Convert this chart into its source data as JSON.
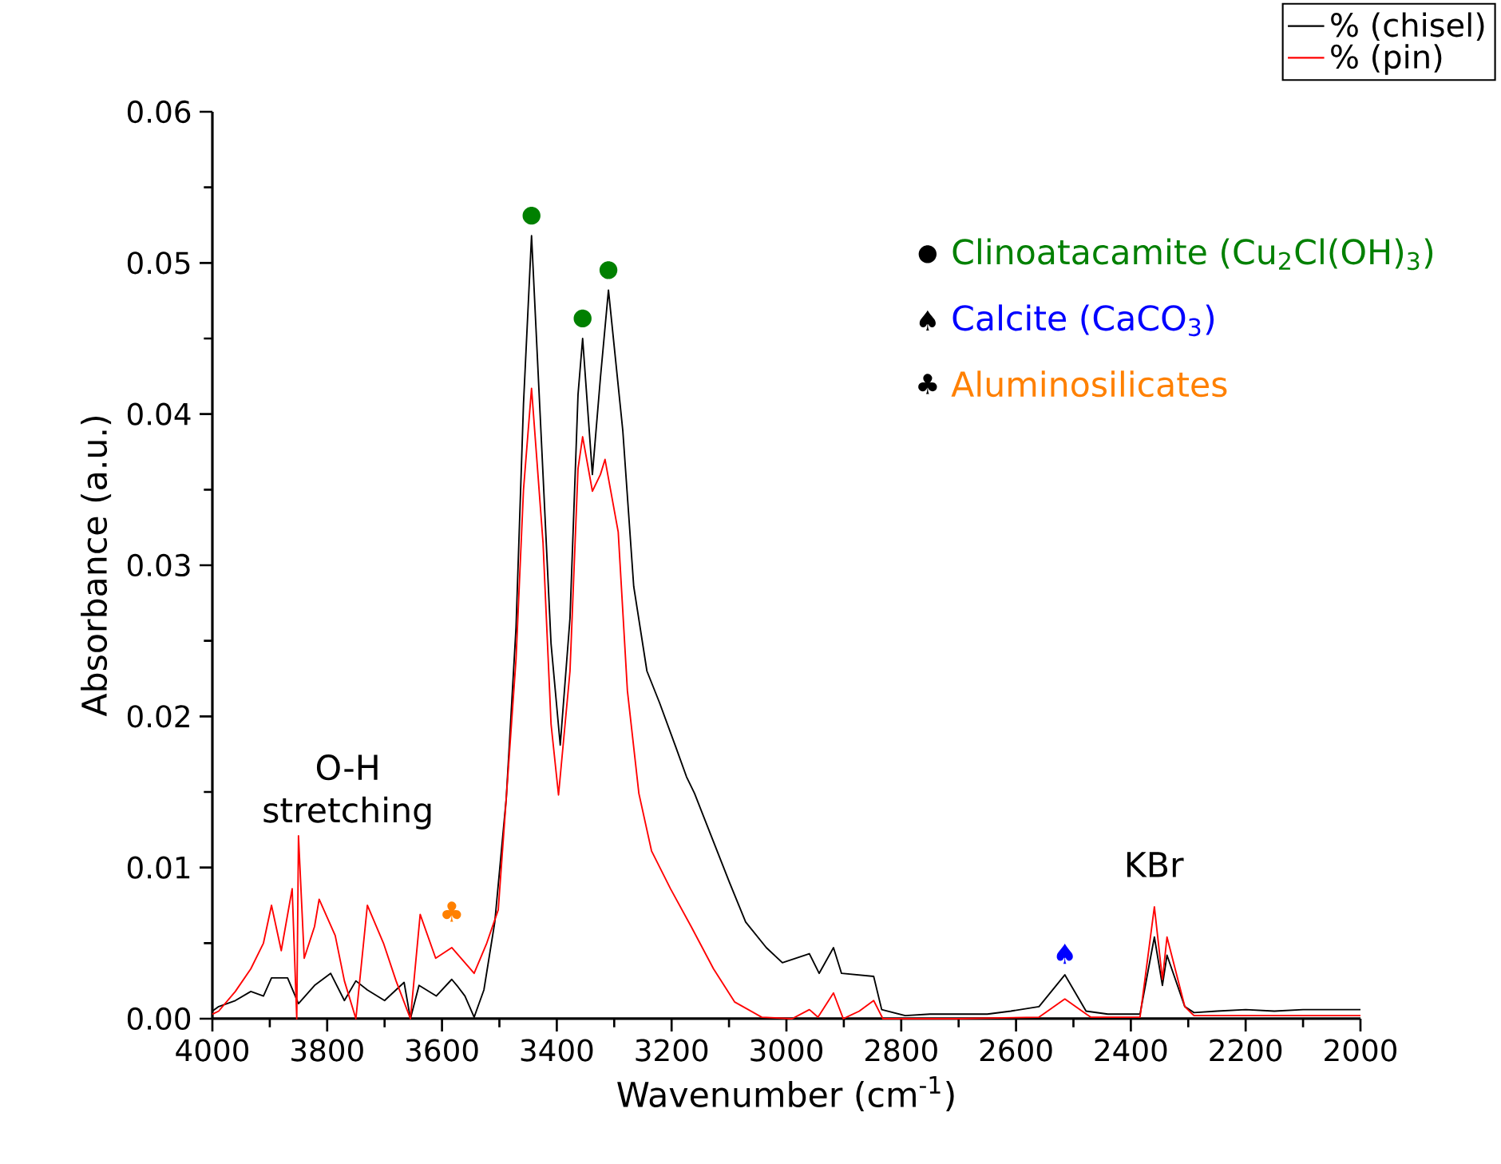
{
  "chart_data": {
    "type": "line",
    "xlabel": "Wavenumber (cm$^{-1}$)",
    "ylabel": "Absorbance (a.u.)",
    "xlim": [
      4000,
      2000
    ],
    "xticks": [
      4000,
      3800,
      3600,
      3400,
      3200,
      3000,
      2800,
      2600,
      2400,
      2200,
      2000
    ],
    "ylim": [
      0,
      0.06
    ],
    "yticks": [
      {
        "value": 0,
        "label": "0.00"
      },
      {
        "value": 0.01,
        "label": "0.01"
      },
      {
        "value": 0.02,
        "label": "0.02"
      },
      {
        "value": 0.03,
        "label": "0.03"
      },
      {
        "value": 0.04,
        "label": "0.04"
      },
      {
        "value": 0.05,
        "label": "0.05"
      },
      {
        "value": 0.06,
        "label": "0.06"
      }
    ],
    "legend": "top right",
    "series": [
      {
        "name": "% (chisel)",
        "color": "#000000",
        "x": [
          4000,
          3989,
          3960,
          3933,
          3911,
          3897,
          3869,
          3850,
          3822,
          3794,
          3770,
          3750,
          3730,
          3700,
          3666,
          3655,
          3640,
          3610,
          3583,
          3572,
          3560,
          3544,
          3527,
          3508,
          3488,
          3471,
          3458,
          3444,
          3424,
          3410,
          3394,
          3377,
          3363,
          3355,
          3338,
          3324,
          3310,
          3285,
          3266,
          3243,
          3221,
          3193,
          3174,
          3160,
          3127,
          3099,
          3071,
          3035,
          3007,
          2960,
          2943,
          2918,
          2904,
          2848,
          2834,
          2793,
          2750,
          2700,
          2650,
          2609,
          2560,
          2515,
          2478,
          2440,
          2400,
          2384,
          2359,
          2345,
          2337,
          2306,
          2290,
          2250,
          2200,
          2150,
          2100,
          2050,
          2000
        ],
        "values": [
          0.0005,
          0.0008,
          0.0012,
          0.0018,
          0.0015,
          0.0027,
          0.0027,
          0.001,
          0.0022,
          0.003,
          0.0012,
          0.0025,
          0.0019,
          0.0012,
          0.0024,
          0.0,
          0.0022,
          0.0015,
          0.0026,
          0.0021,
          0.0015,
          0.0001,
          0.0019,
          0.0064,
          0.0146,
          0.0259,
          0.0407,
          0.0518,
          0.036,
          0.0248,
          0.0181,
          0.0265,
          0.0413,
          0.045,
          0.036,
          0.0424,
          0.0482,
          0.0389,
          0.0286,
          0.023,
          0.0209,
          0.018,
          0.016,
          0.0149,
          0.0117,
          0.009,
          0.0064,
          0.0047,
          0.0037,
          0.0043,
          0.003,
          0.0047,
          0.003,
          0.0028,
          0.0006,
          0.0002,
          0.0003,
          0.0003,
          0.0003,
          0.0005,
          0.0008,
          0.0029,
          0.0005,
          0.0003,
          0.0003,
          0.0003,
          0.0054,
          0.0022,
          0.0042,
          0.0008,
          0.0004,
          0.0005,
          0.0006,
          0.0005,
          0.0006,
          0.0006,
          0.0006
        ]
      },
      {
        "name": "% (pin)",
        "color": "#ff0000",
        "x": [
          4000,
          3989,
          3960,
          3933,
          3911,
          3897,
          3880,
          3861,
          3853,
          3850,
          3840,
          3822,
          3814,
          3786,
          3770,
          3750,
          3730,
          3702,
          3680,
          3655,
          3638,
          3611,
          3583,
          3544,
          3522,
          3502,
          3488,
          3471,
          3458,
          3444,
          3424,
          3410,
          3397,
          3377,
          3363,
          3355,
          3338,
          3324,
          3316,
          3293,
          3277,
          3257,
          3235,
          3202,
          3166,
          3127,
          3090,
          3043,
          2990,
          2960,
          2945,
          2918,
          2901,
          2873,
          2848,
          2832,
          2700,
          2560,
          2515,
          2470,
          2400,
          2384,
          2359,
          2345,
          2337,
          2306,
          2290,
          2200,
          2100,
          2000
        ],
        "values": [
          0.0003,
          0.0005,
          0.0018,
          0.0033,
          0.005,
          0.0075,
          0.0045,
          0.0086,
          0.0,
          0.0121,
          0.004,
          0.0061,
          0.0079,
          0.0055,
          0.0025,
          0.0,
          0.0075,
          0.005,
          0.0025,
          0.0,
          0.0069,
          0.004,
          0.0047,
          0.003,
          0.005,
          0.0072,
          0.0146,
          0.0238,
          0.035,
          0.0417,
          0.0315,
          0.0195,
          0.0148,
          0.023,
          0.0364,
          0.0385,
          0.0349,
          0.036,
          0.037,
          0.0322,
          0.0217,
          0.0149,
          0.0111,
          0.0086,
          0.0061,
          0.0033,
          0.0011,
          0.0001,
          0.0,
          0.0006,
          0.0001,
          0.0017,
          0.0,
          0.0005,
          0.0012,
          0.0,
          0.0,
          0.0001,
          0.0013,
          0.0001,
          0.0001,
          0.0001,
          0.0074,
          0.0026,
          0.0054,
          0.0008,
          0.0002,
          0.0002,
          0.0002,
          0.0002
        ]
      }
    ],
    "annotations": [
      "O-H stretching",
      "KBr",
      {
        "text": "●",
        "x": 3444,
        "y": 0.0518
      },
      {
        "text": "●",
        "x": 3355,
        "y": 0.045
      },
      {
        "text": "●",
        "x": 3310,
        "y": 0.0482
      },
      {
        "text": "♠",
        "x": 2515,
        "y": 0.0029
      },
      {
        "text": "♣",
        "x": 3583,
        "y": 0.0047
      },
      "●",
      "Clinoatacamite (Cu$_{2}$Cl(OH)$_{3}$)",
      "♠",
      "Calcite (CaCO$_{3}$)",
      "♣",
      "Aluminosilicates"
    ]
  }
}
